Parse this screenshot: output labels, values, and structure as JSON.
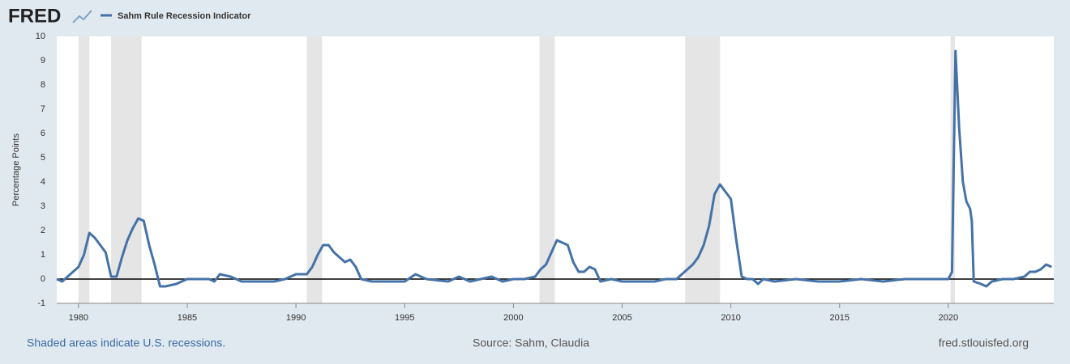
{
  "chart_data": {
    "type": "line",
    "brand": "FRED",
    "legend_label": "Sahm Rule Recession Indicator",
    "ylabel": "Percentage Points",
    "footer_left": "Shaded areas indicate U.S. recessions.",
    "footer_center": "Source: Sahm, Claudia",
    "footer_right": "fred.stlouisfed.org",
    "xlim": [
      1979,
      2024.85
    ],
    "ylim": [
      -1,
      10
    ],
    "xticks": [
      1980,
      1985,
      1990,
      1995,
      2000,
      2005,
      2010,
      2015,
      2020
    ],
    "yticks": [
      -1,
      0,
      1,
      2,
      3,
      4,
      5,
      6,
      7,
      8,
      9,
      10
    ],
    "grid": false,
    "recessions": [
      [
        1980.0,
        1980.5
      ],
      [
        1981.5,
        1982.9
      ],
      [
        1990.5,
        1991.2
      ],
      [
        2001.2,
        2001.9
      ],
      [
        2007.9,
        2009.5
      ],
      [
        2020.1,
        2020.3
      ]
    ],
    "recession_color": "#e5e5e5",
    "x": [
      1979.0,
      1979.25,
      1979.5,
      1979.75,
      1980.0,
      1980.25,
      1980.5,
      1980.75,
      1981.0,
      1981.25,
      1981.5,
      1981.75,
      1982.0,
      1982.25,
      1982.5,
      1982.75,
      1983.0,
      1983.25,
      1983.5,
      1983.75,
      1984.0,
      1984.5,
      1985.0,
      1985.5,
      1986.0,
      1986.25,
      1986.5,
      1987.0,
      1987.5,
      1988.0,
      1989.0,
      1989.5,
      1990.0,
      1990.5,
      1990.75,
      1991.0,
      1991.25,
      1991.5,
      1991.75,
      1992.0,
      1992.25,
      1992.5,
      1992.75,
      1993.0,
      1993.5,
      1994.0,
      1994.5,
      1995.0,
      1995.5,
      1996.0,
      1997.0,
      1997.5,
      1998.0,
      1999.0,
      1999.5,
      2000.0,
      2000.5,
      2001.0,
      2001.25,
      2001.5,
      2001.75,
      2002.0,
      2002.25,
      2002.5,
      2002.75,
      2003.0,
      2003.25,
      2003.5,
      2003.75,
      2004.0,
      2004.5,
      2005.0,
      2006.0,
      2006.5,
      2007.0,
      2007.5,
      2007.75,
      2008.0,
      2008.25,
      2008.5,
      2008.75,
      2009.0,
      2009.25,
      2009.5,
      2009.75,
      2010.0,
      2010.25,
      2010.5,
      2010.75,
      2011.0,
      2011.25,
      2011.5,
      2012.0,
      2013.0,
      2014.0,
      2015.0,
      2016.0,
      2017.0,
      2018.0,
      2019.0,
      2019.5,
      2020.0,
      2020.17,
      2020.33,
      2020.5,
      2020.67,
      2020.83,
      2021.0,
      2021.08,
      2021.17,
      2021.5,
      2021.75,
      2022.0,
      2022.5,
      2023.0,
      2023.5,
      2023.75,
      2024.0,
      2024.25,
      2024.5,
      2024.75
    ],
    "series": [
      {
        "name": "Sahm Rule Recession Indicator",
        "color": "#4572a7",
        "values": [
          0.0,
          -0.1,
          0.1,
          0.3,
          0.5,
          1.0,
          1.9,
          1.7,
          1.4,
          1.1,
          0.1,
          0.1,
          0.9,
          1.6,
          2.1,
          2.5,
          2.4,
          1.4,
          0.6,
          -0.3,
          -0.3,
          -0.2,
          0.0,
          0.0,
          0.0,
          -0.1,
          0.2,
          0.1,
          -0.1,
          -0.1,
          -0.1,
          0.0,
          0.2,
          0.2,
          0.5,
          1.0,
          1.4,
          1.4,
          1.1,
          0.9,
          0.7,
          0.8,
          0.5,
          0.0,
          -0.1,
          -0.1,
          -0.1,
          -0.1,
          0.2,
          0.0,
          -0.1,
          0.1,
          -0.1,
          0.1,
          -0.1,
          0.0,
          0.0,
          0.1,
          0.4,
          0.6,
          1.1,
          1.6,
          1.5,
          1.4,
          0.7,
          0.3,
          0.3,
          0.5,
          0.4,
          -0.1,
          0.0,
          -0.1,
          -0.1,
          -0.1,
          0.0,
          0.0,
          0.2,
          0.4,
          0.6,
          0.9,
          1.4,
          2.2,
          3.5,
          3.9,
          3.6,
          3.3,
          1.6,
          0.1,
          0.0,
          0.0,
          -0.2,
          0.0,
          -0.1,
          0.0,
          -0.1,
          -0.1,
          0.0,
          -0.1,
          0.0,
          0.0,
          0.0,
          0.0,
          0.3,
          9.4,
          6.2,
          4.0,
          3.2,
          2.9,
          2.4,
          -0.1,
          -0.2,
          -0.3,
          -0.1,
          0.0,
          0.0,
          0.1,
          0.3,
          0.3,
          0.4,
          0.6,
          0.5
        ]
      }
    ]
  }
}
